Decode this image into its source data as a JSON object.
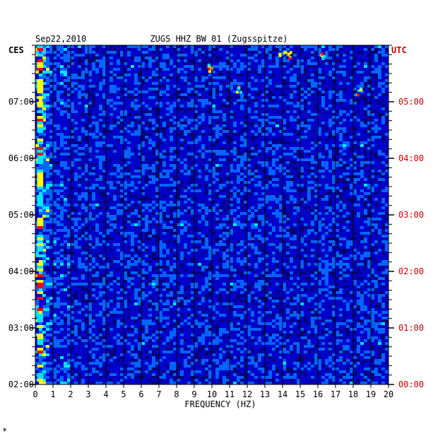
{
  "chart_data": {
    "type": "heatmap",
    "title": "ZUGS HHZ BW 01 (Zugsspitze)",
    "date": "Sep22,2010",
    "xlabel": "FREQUENCY (HZ)",
    "xlim": [
      0,
      20
    ],
    "x_ticks": [
      "0",
      "1",
      "2",
      "3",
      "4",
      "5",
      "6",
      "7",
      "8",
      "9",
      "10",
      "11",
      "12",
      "13",
      "14",
      "15",
      "16",
      "17",
      "18",
      "19",
      "20"
    ],
    "left_axis_label": "CES",
    "right_axis_label": "UTC",
    "y_ticks_left": [
      "07:00",
      "06:00",
      "05:00",
      "04:00",
      "03:00",
      "02:00"
    ],
    "y_ticks_right": [
      "05:00",
      "04:00",
      "03:00",
      "02:00",
      "01:00",
      "00:00"
    ],
    "y_tick_hours_from_start": [
      5,
      4,
      3,
      2,
      1,
      0
    ],
    "time_span_hours": 6,
    "colors": {
      "background": "#0000c8",
      "deep": "#000078",
      "mid": "#0064ff",
      "cyan": "#00e6ff",
      "yellow": "#ffff00",
      "red": "#ff0000",
      "utc_text": "#cc0000"
    },
    "footer_mark": "*"
  }
}
